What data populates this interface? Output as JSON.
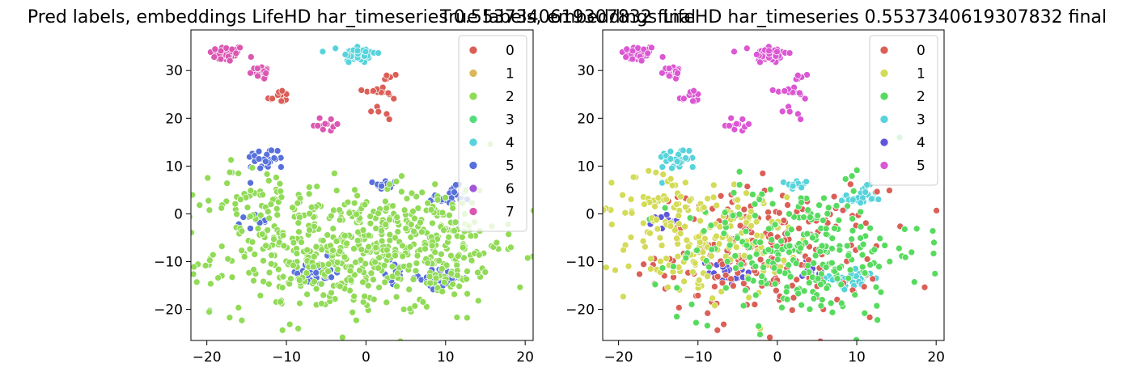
{
  "chart_data": [
    {
      "type": "scatter",
      "title": "Pred labels, embeddings LifeHD har_timeseries 0.5537340619307832 final",
      "xlabel": "",
      "ylabel": "",
      "xlim": [
        -22,
        21
      ],
      "ylim": [
        -26.5,
        38.5
      ],
      "xticks": [
        -20,
        -10,
        0,
        10,
        20
      ],
      "yticks": [
        -20,
        -10,
        0,
        10,
        20,
        30
      ],
      "grid": false,
      "legend_position": "top-right",
      "legend": [
        {
          "name": "0",
          "color": "#db5f57"
        },
        {
          "name": "1",
          "color": "#dbb757"
        },
        {
          "name": "2",
          "color": "#91db57"
        },
        {
          "name": "3",
          "color": "#57db7f"
        },
        {
          "name": "4",
          "color": "#57d3db"
        },
        {
          "name": "5",
          "color": "#5770db"
        },
        {
          "name": "6",
          "color": "#a157db"
        },
        {
          "name": "7",
          "color": "#db57b2"
        }
      ],
      "clusters": [
        {
          "label": "7",
          "cx": -17.5,
          "cy": 33.5,
          "sx": 1.1,
          "sy": 0.9,
          "n": 45
        },
        {
          "label": "7",
          "cx": -13,
          "cy": 29.5,
          "sx": 0.8,
          "sy": 0.7,
          "n": 22
        },
        {
          "label": "0",
          "cx": -11,
          "cy": 24.5,
          "sx": 0.7,
          "sy": 0.8,
          "n": 14
        },
        {
          "label": "4",
          "cx": -1,
          "cy": 33.5,
          "sx": 1.1,
          "sy": 1.0,
          "n": 45
        },
        {
          "label": "0",
          "cx": 2,
          "cy": 25,
          "sx": 1.2,
          "sy": 3.0,
          "n": 22
        },
        {
          "label": "7",
          "cx": -5,
          "cy": 19,
          "sx": 1.0,
          "sy": 1.2,
          "n": 12
        },
        {
          "label": "5",
          "cx": -12.5,
          "cy": 11.5,
          "sx": 1.3,
          "sy": 1.2,
          "n": 28
        },
        {
          "label": "5",
          "cx": 2.5,
          "cy": 6,
          "sx": 0.7,
          "sy": 0.6,
          "n": 16
        },
        {
          "label": "5",
          "cx": 10.5,
          "cy": 3.5,
          "sx": 1.3,
          "sy": 1.1,
          "n": 30
        },
        {
          "label": "5",
          "cx": -14,
          "cy": -1.5,
          "sx": 0.8,
          "sy": 0.8,
          "n": 12
        },
        {
          "label": "5",
          "cx": -6.5,
          "cy": -12,
          "sx": 1.2,
          "sy": 1.4,
          "n": 38
        },
        {
          "label": "5",
          "cx": 9.5,
          "cy": -13.5,
          "sx": 1.4,
          "sy": 1.0,
          "n": 48
        },
        {
          "label": "5",
          "cx": 4.5,
          "cy": -12,
          "sx": 1.0,
          "sy": 1.4,
          "n": 12
        },
        {
          "label": "2",
          "cx": -3,
          "cy": -8,
          "sx": 8.0,
          "sy": 6.5,
          "n": 480
        },
        {
          "label": "2",
          "cx": 9,
          "cy": -6,
          "sx": 4.0,
          "sy": 6.0,
          "n": 150
        },
        {
          "label": "2",
          "cx": -14,
          "cy": 3,
          "sx": 2.5,
          "sy": 4.0,
          "n": 40
        }
      ]
    },
    {
      "type": "scatter",
      "title": "True labels, embeddings LifeHD har_timeseries 0.5537340619307832 final",
      "xlabel": "",
      "ylabel": "",
      "xlim": [
        -22,
        21
      ],
      "ylim": [
        -26.5,
        38.5
      ],
      "xticks": [
        -20,
        -10,
        0,
        10,
        20
      ],
      "yticks": [
        -20,
        -10,
        0,
        10,
        20,
        30
      ],
      "grid": false,
      "legend_position": "top-right",
      "legend": [
        {
          "name": "0",
          "color": "#db5f57"
        },
        {
          "name": "1",
          "color": "#d3db57"
        },
        {
          "name": "2",
          "color": "#57db5f"
        },
        {
          "name": "3",
          "color": "#57d3db"
        },
        {
          "name": "4",
          "color": "#5f57db"
        },
        {
          "name": "5",
          "color": "#db57d3"
        }
      ],
      "clusters": [
        {
          "label": "5",
          "cx": -17.5,
          "cy": 33.5,
          "sx": 1.1,
          "sy": 0.9,
          "n": 45
        },
        {
          "label": "5",
          "cx": -13,
          "cy": 29.5,
          "sx": 0.8,
          "sy": 0.7,
          "n": 22
        },
        {
          "label": "5",
          "cx": -11,
          "cy": 24.5,
          "sx": 0.7,
          "sy": 0.8,
          "n": 14
        },
        {
          "label": "5",
          "cx": -1,
          "cy": 33.5,
          "sx": 1.1,
          "sy": 1.0,
          "n": 45
        },
        {
          "label": "5",
          "cx": 2,
          "cy": 25,
          "sx": 1.2,
          "sy": 3.0,
          "n": 22
        },
        {
          "label": "5",
          "cx": -5,
          "cy": 19,
          "sx": 1.0,
          "sy": 1.2,
          "n": 12
        },
        {
          "label": "3",
          "cx": -12.5,
          "cy": 11.5,
          "sx": 1.3,
          "sy": 1.2,
          "n": 28
        },
        {
          "label": "3",
          "cx": 2.5,
          "cy": 6,
          "sx": 0.7,
          "sy": 0.6,
          "n": 16
        },
        {
          "label": "3",
          "cx": 10.5,
          "cy": 3.5,
          "sx": 1.3,
          "sy": 1.1,
          "n": 30
        },
        {
          "label": "4",
          "cx": -14,
          "cy": -1.5,
          "sx": 0.8,
          "sy": 0.8,
          "n": 12
        },
        {
          "label": "4",
          "cx": -6.5,
          "cy": -12,
          "sx": 1.2,
          "sy": 1.4,
          "n": 20
        },
        {
          "label": "3",
          "cx": 9.5,
          "cy": -13.5,
          "sx": 1.4,
          "sy": 1.0,
          "n": 48
        },
        {
          "label": "4",
          "cx": 4.5,
          "cy": -12,
          "sx": 1.0,
          "sy": 1.4,
          "n": 12
        },
        {
          "label": "0",
          "cx": -1,
          "cy": -8,
          "sx": 7.0,
          "sy": 6.5,
          "n": 220
        },
        {
          "label": "1",
          "cx": -9,
          "cy": -6,
          "sx": 5.0,
          "sy": 6.0,
          "n": 160
        },
        {
          "label": "2",
          "cx": 3,
          "cy": -8,
          "sx": 7.5,
          "sy": 7.0,
          "n": 250
        },
        {
          "label": "1",
          "cx": -15,
          "cy": 2,
          "sx": 2.5,
          "sy": 4.0,
          "n": 40
        }
      ]
    }
  ]
}
